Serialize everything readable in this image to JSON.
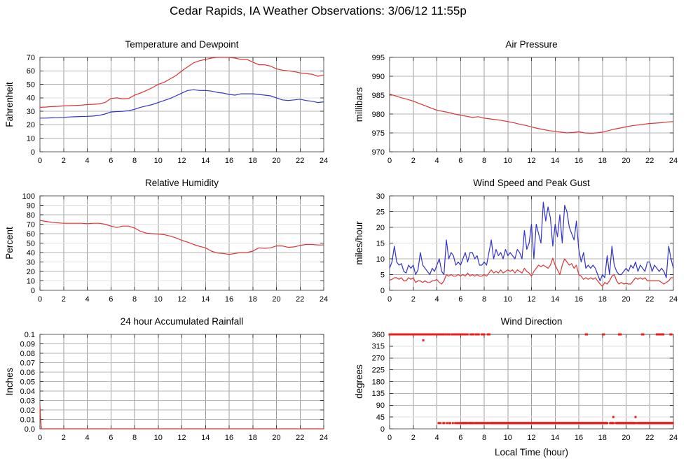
{
  "page": {
    "title": "Cedar Rapids, IA Weather Observations: 3/06/12 11:55p"
  },
  "colors": {
    "red": "#dd3333",
    "blue": "#3333cc",
    "dot_red": "#ee1c1c",
    "grid": "#9c9c9c",
    "hgrid": "#b4b4b4",
    "grid_light": "#e2e2e2",
    "border": "#5f5f5f",
    "tick": "#3a3a3a",
    "text": "#000000",
    "background": "#ffffff"
  },
  "chart_data": [
    {
      "type": "line",
      "title": "Temperature and Dewpoint",
      "ylabel": "Fahrenheit",
      "xlabel": "",
      "ylim": [
        0,
        70
      ],
      "ytick_values": [
        0,
        10,
        20,
        30,
        40,
        50,
        60,
        70
      ],
      "ytick_labels": [
        "0",
        "10",
        "20",
        "30",
        "40",
        "50",
        "60",
        "70"
      ],
      "light_yticks": [
        40
      ],
      "xlim": [
        0,
        24
      ],
      "xtick_values": [
        0,
        2,
        4,
        6,
        8,
        10,
        12,
        14,
        16,
        18,
        20,
        22,
        24
      ],
      "series": [
        {
          "name": "temperature",
          "color": "red",
          "x0": 0,
          "dx": 0.5,
          "y": [
            33,
            33.2,
            33.5,
            33.7,
            34,
            34.2,
            34.4,
            34.6,
            35,
            35.2,
            35.5,
            36.5,
            39.5,
            40,
            39.2,
            39.5,
            42,
            43.5,
            45.5,
            47.5,
            50,
            51.5,
            54,
            56.5,
            60,
            63,
            66,
            67.5,
            68.5,
            69.5,
            70,
            70,
            70,
            69.5,
            68.5,
            68.5,
            66.5,
            64.5,
            64.5,
            63.5,
            61.5,
            60.5,
            60,
            59.5,
            58.5,
            58,
            57.5,
            56,
            57
          ]
        },
        {
          "name": "dewpoint",
          "color": "blue",
          "x0": 0,
          "dx": 0.5,
          "y": [
            25,
            25,
            25.2,
            25.3,
            25.5,
            25.8,
            26,
            26.2,
            26.3,
            26.5,
            27,
            28,
            29.5,
            29.8,
            30,
            30.5,
            31.5,
            33,
            34,
            35,
            36.5,
            38,
            39.5,
            41.5,
            43.5,
            45.5,
            46,
            45.5,
            45.5,
            45,
            44,
            43.5,
            42.5,
            42,
            43,
            43,
            43,
            42.5,
            42,
            41.5,
            40,
            38.5,
            38,
            38.5,
            39,
            38,
            37.5,
            36.5,
            37
          ]
        }
      ]
    },
    {
      "type": "line",
      "title": "Air Pressure",
      "ylabel": "millibars",
      "xlabel": "",
      "ylim": [
        970,
        995
      ],
      "ytick_values": [
        970,
        975,
        980,
        985,
        990,
        995
      ],
      "ytick_labels": [
        "970",
        "975",
        "980",
        "985",
        "990",
        "995"
      ],
      "light_yticks": [],
      "xlim": [
        0,
        24
      ],
      "xtick_values": [
        0,
        2,
        4,
        6,
        8,
        10,
        12,
        14,
        16,
        18,
        20,
        22,
        24
      ],
      "series": [
        {
          "name": "pressure",
          "color": "red",
          "x0": 0,
          "dx": 0.5,
          "y": [
            985.3,
            984.8,
            984.3,
            983.9,
            983.4,
            982.8,
            982.2,
            981.6,
            981.0,
            980.7,
            980.4,
            980.0,
            979.7,
            979.4,
            979.1,
            979.3,
            978.9,
            978.7,
            978.5,
            978.3,
            978.0,
            977.7,
            977.3,
            977.0,
            976.6,
            976.2,
            975.9,
            975.6,
            975.4,
            975.2,
            975.0,
            975.1,
            975.3,
            975.0,
            974.9,
            975.0,
            975.2,
            975.6,
            976.0,
            976.3,
            976.6,
            976.9,
            977.1,
            977.3,
            977.5,
            977.6,
            977.7,
            977.9,
            978.0
          ]
        }
      ]
    },
    {
      "type": "line",
      "title": "Relative Humidity",
      "ylabel": "Percent",
      "xlabel": "",
      "ylim": [
        0,
        100
      ],
      "ytick_values": [
        0,
        10,
        20,
        30,
        40,
        50,
        60,
        70,
        80,
        90,
        100
      ],
      "ytick_labels": [
        "0",
        "10",
        "20",
        "30",
        "40",
        "50",
        "60",
        "70",
        "80",
        "90",
        "100"
      ],
      "light_yticks": [
        10,
        30,
        50,
        70,
        90
      ],
      "xlim": [
        0,
        24
      ],
      "xtick_values": [
        0,
        2,
        4,
        6,
        8,
        10,
        12,
        14,
        16,
        18,
        20,
        22,
        24
      ],
      "series": [
        {
          "name": "humidity",
          "color": "red",
          "x0": 0,
          "dx": 0.5,
          "y": [
            74,
            73,
            72,
            71.5,
            71,
            71,
            71,
            71,
            70.5,
            71,
            71,
            70,
            68,
            66.5,
            68,
            68,
            66,
            62.5,
            60.5,
            60,
            59.5,
            59,
            57.5,
            55.5,
            53,
            51,
            48.5,
            46.5,
            45,
            41.5,
            39.5,
            39,
            38,
            39,
            40,
            40,
            41.5,
            45,
            44.5,
            45,
            47,
            47,
            45.5,
            46,
            47.5,
            48.5,
            48.5,
            48,
            48
          ]
        }
      ]
    },
    {
      "type": "line",
      "title": "Wind Speed and Peak Gust",
      "ylabel": "miles/hour",
      "xlabel": "",
      "ylim": [
        0,
        30
      ],
      "ytick_values": [
        0,
        5,
        10,
        15,
        20,
        25,
        30
      ],
      "ytick_labels": [
        "0",
        "5",
        "10",
        "15",
        "20",
        "25",
        "30"
      ],
      "light_yticks": [
        15
      ],
      "xlim": [
        0,
        24
      ],
      "xtick_values": [
        0,
        2,
        4,
        6,
        8,
        10,
        12,
        14,
        16,
        18,
        20,
        22,
        24
      ],
      "series": [
        {
          "name": "peak-gust",
          "color": "blue",
          "x0": 0,
          "dx": 0.2,
          "y": [
            7,
            9,
            14,
            9,
            8,
            8.5,
            6,
            5.5,
            8,
            7,
            8,
            5,
            6.5,
            12,
            8,
            7,
            6,
            5,
            7,
            6,
            8,
            10,
            6,
            5,
            16,
            10,
            12,
            11,
            8,
            9,
            8,
            10,
            12,
            9,
            12,
            12,
            10,
            11,
            8,
            8,
            9,
            8,
            12,
            16,
            10,
            13,
            11,
            12,
            10,
            13,
            11,
            12,
            11,
            10,
            13,
            12,
            10,
            19,
            13,
            15,
            21,
            10,
            21,
            18,
            15,
            28,
            22,
            26.5,
            23,
            14,
            21,
            17,
            24,
            15,
            27,
            25,
            20,
            18,
            16,
            22,
            13,
            9,
            12,
            7,
            8,
            7,
            8,
            7,
            5,
            3,
            5,
            4,
            11,
            5,
            14,
            8,
            6,
            5,
            5,
            6,
            7,
            6,
            8,
            7,
            9,
            6,
            8,
            7,
            6,
            9,
            9,
            6,
            8,
            7,
            6,
            7,
            6,
            4,
            14,
            10,
            7
          ]
        },
        {
          "name": "wind-speed",
          "color": "red",
          "x0": 0,
          "dx": 0.2,
          "y": [
            3.2,
            3.5,
            4,
            4,
            3.5,
            4,
            3,
            3,
            4,
            3.5,
            4,
            2.5,
            3,
            3,
            2.5,
            3,
            2.5,
            2.5,
            3,
            3,
            3.5,
            2.5,
            2,
            3,
            5,
            4.5,
            5,
            4.5,
            4.5,
            5,
            4.5,
            5,
            4.5,
            5.5,
            4.5,
            5,
            4.5,
            5,
            4.5,
            4.5,
            5,
            4.5,
            5.5,
            6.5,
            5.5,
            6,
            5.5,
            6.5,
            5.5,
            6,
            6.5,
            6,
            6.5,
            5.5,
            6.5,
            6,
            5.5,
            7,
            6,
            5.5,
            4.5,
            6,
            7,
            8,
            7.5,
            8,
            7.5,
            7,
            8,
            10.2,
            8,
            6.5,
            5,
            8,
            10,
            9,
            8,
            8.5,
            7,
            8,
            5,
            4.5,
            3.5,
            4,
            3.5,
            4,
            3.5,
            4,
            3,
            2,
            1.2,
            2.5,
            2,
            3,
            4.5,
            5,
            3,
            2,
            2.5,
            2,
            2.2,
            2,
            2,
            3,
            4,
            3.5,
            4,
            3.5,
            4,
            3,
            3,
            3,
            3,
            3,
            3,
            2.5,
            2,
            2.5,
            3,
            4,
            4
          ]
        }
      ]
    },
    {
      "type": "line",
      "title": "24 hour Accumulated Rainfall",
      "ylabel": "Inches",
      "xlabel": "",
      "ylim": [
        0,
        0.1
      ],
      "ytick_values": [
        0,
        0.01,
        0.02,
        0.03,
        0.04,
        0.05,
        0.06,
        0.07,
        0.08,
        0.09,
        0.1
      ],
      "ytick_labels": [
        "0.0",
        "0.01",
        "0.02",
        "0.03",
        "0.04",
        "0.05",
        "0.06",
        "0.07",
        "0.08",
        "0.09",
        "0.1"
      ],
      "light_yticks": [],
      "xlim": [
        0,
        24
      ],
      "xtick_values": [
        0,
        2,
        4,
        6,
        8,
        10,
        12,
        14,
        16,
        18,
        20,
        22,
        24
      ],
      "series": [
        {
          "name": "rainfall",
          "color": "red",
          "points": [
            [
              0,
              0.025
            ],
            [
              0.05,
              0.012
            ],
            [
              0.1,
              0.003
            ],
            [
              0.15,
              0
            ],
            [
              24,
              0
            ]
          ]
        }
      ]
    },
    {
      "type": "scatter",
      "title": "Wind Direction",
      "ylabel": "degrees",
      "xlabel": "Local Time (hour)",
      "ylim": [
        0,
        360
      ],
      "ytick_values": [
        0,
        45,
        90,
        135,
        180,
        225,
        270,
        315,
        360
      ],
      "ytick_labels": [
        "0",
        "45",
        "90",
        "135",
        "180",
        "225",
        "270",
        "315",
        "360"
      ],
      "light_yticks": [
        45,
        315
      ],
      "xlim": [
        0,
        24
      ],
      "xtick_values": [
        0,
        2,
        4,
        6,
        8,
        10,
        12,
        14,
        16,
        18,
        20,
        22,
        24
      ],
      "series": [
        {
          "name": "direction-north-360",
          "color": "dot_red",
          "marker": "square",
          "y_const": 360,
          "x_runs": [
            [
              0,
              4.0,
              0.05
            ],
            [
              4.05,
              4.7,
              0.1
            ],
            [
              4.85,
              5.1,
              0.12
            ],
            [
              5.3,
              5.75,
              0.15
            ],
            [
              5.9,
              6.2,
              0.1
            ],
            [
              6.35,
              6.6,
              0.12
            ],
            [
              6.85,
              7.1,
              0.12
            ],
            [
              7.3,
              7.55,
              0.12
            ],
            [
              7.8,
              8.0,
              0.1
            ],
            [
              8.3,
              8.45,
              0.07
            ]
          ],
          "x_singles": [
            16.6,
            16.68,
            18.05,
            18.12,
            19.4,
            19.47,
            19.55,
            21.35,
            21.45,
            22.6,
            22.68,
            22.76,
            22.85,
            22.95,
            23.05,
            23.15,
            23.75,
            23.82
          ]
        },
        {
          "name": "direction-nne-22",
          "color": "dot_red",
          "marker": "square",
          "y_const": 22,
          "x_runs": [
            [
              6.05,
              6.6,
              0.06
            ],
            [
              6.72,
              7.12,
              0.06
            ],
            [
              7.22,
              7.58,
              0.06
            ],
            [
              7.68,
              8.02,
              0.06
            ],
            [
              8.1,
              8.45,
              0.06
            ],
            [
              8.52,
              18.45,
              0.05
            ],
            [
              18.65,
              19.0,
              0.06
            ],
            [
              19.15,
              20.85,
              0.05
            ],
            [
              21.0,
              23.98,
              0.05
            ]
          ],
          "x_singles": [
            4.15,
            4.3,
            4.55,
            4.62,
            4.85,
            5.05,
            5.12,
            5.35,
            5.55,
            5.7,
            5.85,
            5.95
          ]
        },
        {
          "name": "direction-outliers",
          "color": "dot_red",
          "marker": "square",
          "points": [
            [
              2.85,
              337
            ],
            [
              18.92,
              45
            ],
            [
              20.8,
              45
            ]
          ]
        }
      ]
    }
  ]
}
